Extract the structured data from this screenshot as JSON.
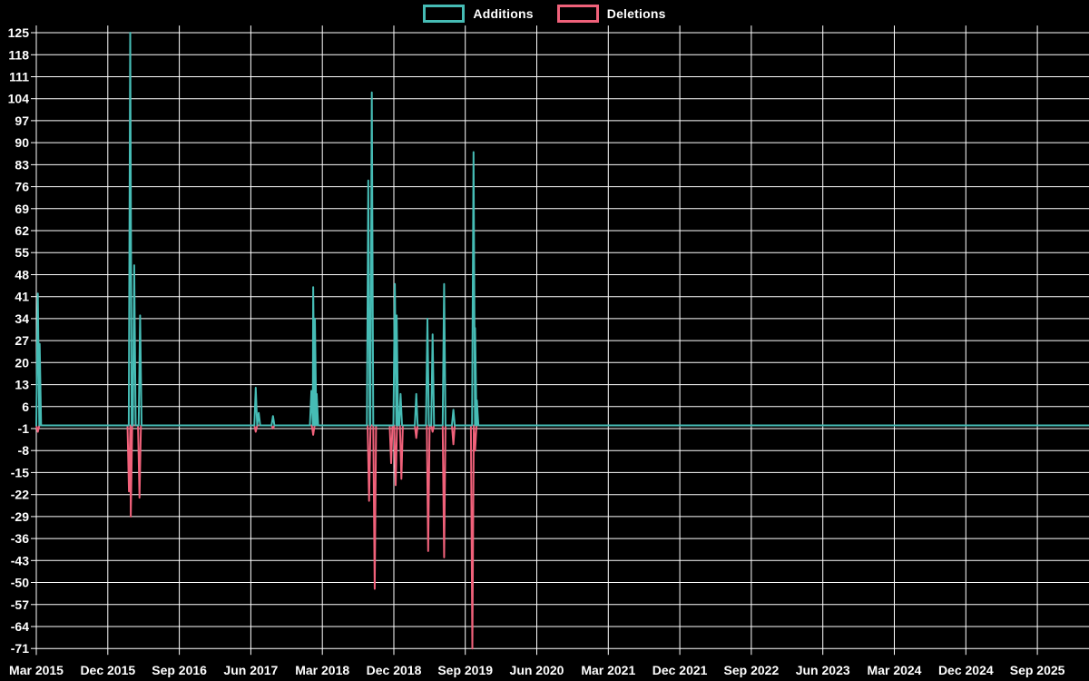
{
  "chart_data": {
    "type": "line",
    "title": "",
    "background_color": "#000000",
    "grid_color": "#ffffff",
    "text_color": "#ffffff",
    "legend": {
      "additions": "Additions",
      "deletions": "Deletions",
      "position": "top-center"
    },
    "colors": {
      "additions": "#46bcb5",
      "deletions": "#f0617a"
    },
    "grid": true,
    "baseline_value": 0,
    "y_axis": {
      "min": -71,
      "max": 127,
      "tick_step": 7,
      "ticks": [
        125,
        118,
        111,
        104,
        97,
        90,
        83,
        76,
        69,
        62,
        55,
        48,
        41,
        34,
        27,
        20,
        13,
        6,
        -1,
        -8,
        -15,
        -22,
        -29,
        -36,
        -43,
        -50,
        -57,
        -64,
        -71
      ]
    },
    "x_axis": {
      "start": "2015-03",
      "end": "2026-03",
      "tick_interval_months": 9,
      "ticks": [
        "Mar 2015",
        "Dec 2015",
        "Sep 2016",
        "Jun 2017",
        "Mar 2018",
        "Dec 2018",
        "Sep 2019",
        "Jun 2020",
        "Mar 2021",
        "Dec 2021",
        "Sep 2022",
        "Jun 2023",
        "Mar 2024",
        "Dec 2024",
        "Sep 2025"
      ]
    },
    "series": [
      {
        "name": "Additions",
        "color_key": "additions",
        "note": "value 0 everywhere except listed spike points",
        "points": [
          {
            "date": "2015-03-07",
            "value": 42
          },
          {
            "date": "2015-03-14",
            "value": 26
          },
          {
            "date": "2016-02-26",
            "value": 125
          },
          {
            "date": "2016-03-11",
            "value": 51
          },
          {
            "date": "2016-04-03",
            "value": 35
          },
          {
            "date": "2017-06-20",
            "value": 12
          },
          {
            "date": "2017-07-01",
            "value": 4
          },
          {
            "date": "2017-08-25",
            "value": 3
          },
          {
            "date": "2018-01-20",
            "value": 11
          },
          {
            "date": "2018-01-27",
            "value": 44
          },
          {
            "date": "2018-02-03",
            "value": 34
          },
          {
            "date": "2018-02-10",
            "value": 10
          },
          {
            "date": "2018-08-25",
            "value": 78
          },
          {
            "date": "2018-09-08",
            "value": 106
          },
          {
            "date": "2018-12-05",
            "value": 45
          },
          {
            "date": "2018-12-12",
            "value": 35
          },
          {
            "date": "2018-12-27",
            "value": 10
          },
          {
            "date": "2019-02-26",
            "value": 10
          },
          {
            "date": "2019-04-08",
            "value": 34
          },
          {
            "date": "2019-04-28",
            "value": 29
          },
          {
            "date": "2019-06-11",
            "value": 45
          },
          {
            "date": "2019-07-16",
            "value": 5
          },
          {
            "date": "2019-10-02",
            "value": 87
          },
          {
            "date": "2019-10-08",
            "value": 31
          },
          {
            "date": "2019-10-15",
            "value": 8
          }
        ]
      },
      {
        "name": "Deletions",
        "color_key": "deletions",
        "note": "value 0 everywhere except listed spike points",
        "points": [
          {
            "date": "2015-03-07",
            "value": -2
          },
          {
            "date": "2016-02-21",
            "value": -21
          },
          {
            "date": "2016-02-28",
            "value": -29
          },
          {
            "date": "2016-03-31",
            "value": -23
          },
          {
            "date": "2017-06-20",
            "value": -2
          },
          {
            "date": "2017-08-25",
            "value": -1
          },
          {
            "date": "2018-01-27",
            "value": -3
          },
          {
            "date": "2018-08-28",
            "value": -24
          },
          {
            "date": "2018-09-19",
            "value": -52
          },
          {
            "date": "2018-11-21",
            "value": -12
          },
          {
            "date": "2018-12-08",
            "value": -19
          },
          {
            "date": "2018-12-30",
            "value": -17
          },
          {
            "date": "2019-02-26",
            "value": -4
          },
          {
            "date": "2019-04-11",
            "value": -40
          },
          {
            "date": "2019-04-28",
            "value": -2
          },
          {
            "date": "2019-06-11",
            "value": -42
          },
          {
            "date": "2019-07-16",
            "value": -6
          },
          {
            "date": "2019-09-28",
            "value": -71
          },
          {
            "date": "2019-10-08",
            "value": -8
          }
        ]
      }
    ]
  }
}
